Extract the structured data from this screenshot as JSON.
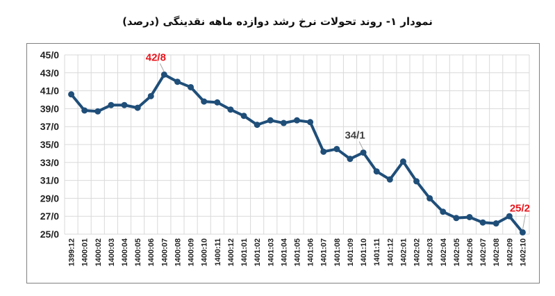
{
  "chart_data": {
    "type": "line",
    "title": "نمودار ۱- روند تحولات نرخ رشد دوازده ماهه نقدینگی (درصد)",
    "xlabel": "",
    "ylabel": "",
    "ylim": [
      25,
      45
    ],
    "yticks": [
      "45/0",
      "43/0",
      "41/0",
      "39/0",
      "37/0",
      "35/0",
      "33/0",
      "31/0",
      "29/0",
      "27/0",
      "25/0"
    ],
    "grid": true,
    "categories": [
      "1399:12",
      "1400:01",
      "1400:02",
      "1400:03",
      "1400:04",
      "1400:05",
      "1400:06",
      "1400:07",
      "1400:08",
      "1400:09",
      "1400:10",
      "1400:11",
      "1400:12",
      "1401:01",
      "1401:02",
      "1401:03",
      "1401:04",
      "1401:05",
      "1401:06",
      "1401:07",
      "1401:08",
      "1401:09",
      "1401:10",
      "1401:11",
      "1401:12",
      "1402:01",
      "1402:02",
      "1402:03",
      "1402:04",
      "1402:05",
      "1402:06",
      "1402:07",
      "1402:08",
      "1402:09",
      "1402:10"
    ],
    "values": [
      40.6,
      38.8,
      38.7,
      39.4,
      39.4,
      39.1,
      40.4,
      42.8,
      42.0,
      41.4,
      39.8,
      39.7,
      38.9,
      38.2,
      37.2,
      37.7,
      37.4,
      37.7,
      37.5,
      34.2,
      34.5,
      33.4,
      34.1,
      32.0,
      31.1,
      33.1,
      30.9,
      29.0,
      27.5,
      26.8,
      26.9,
      26.3,
      26.2,
      27.0,
      25.2
    ],
    "line_color": "#1f4e79",
    "annotations": [
      {
        "category": "1400:07",
        "label": "42/8",
        "color": "#e8141b"
      },
      {
        "category": "1401:10",
        "label": "34/1",
        "color": "#404040"
      },
      {
        "category": "1402:10",
        "label": "25/2",
        "color": "#e8141b"
      }
    ]
  }
}
